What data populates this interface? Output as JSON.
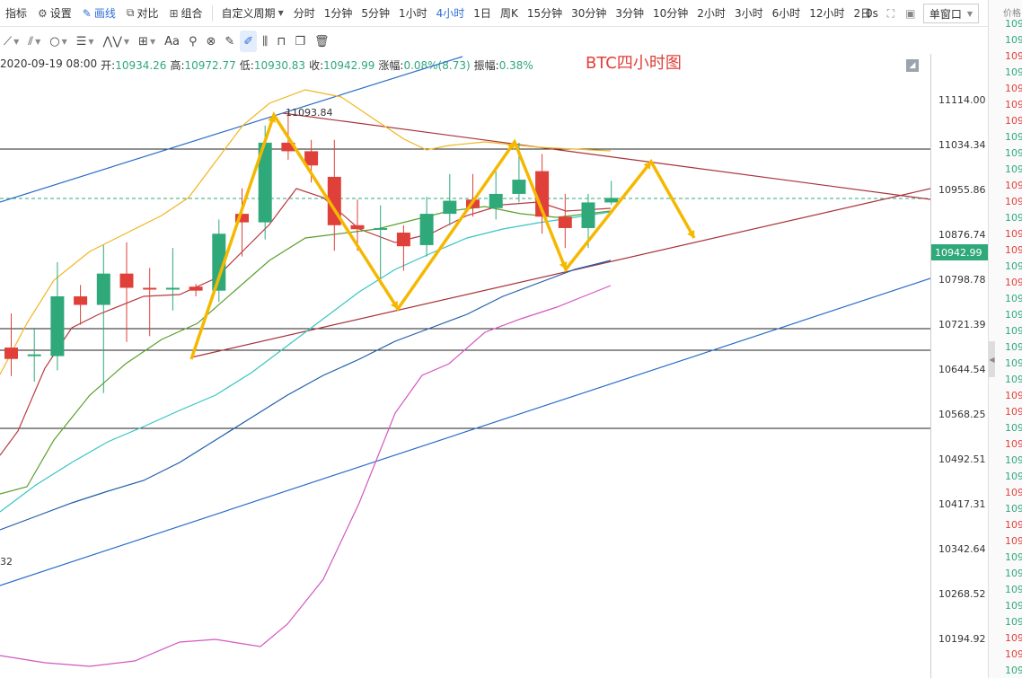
{
  "toolbar": {
    "indicators_label": "指标",
    "settings_label": "设置",
    "draw_label": "画线",
    "compare_label": "对比",
    "combo_label": "组合",
    "custom_period_label": "自定义周期",
    "periods": [
      "分时",
      "1分钟",
      "5分钟",
      "1小时",
      "4小时",
      "1日",
      "周K",
      "15分钟",
      "30分钟",
      "3分钟",
      "10分钟",
      "2小时",
      "3小时",
      "6小时",
      "12小时",
      "2日"
    ],
    "active_period": "4小时",
    "seconds_label": "0s",
    "window_select": "单窗口"
  },
  "drawing_tools": [
    {
      "name": "trendline-tool-icon",
      "glyph": "⟋",
      "caret": true
    },
    {
      "name": "parallel-lines-tool-icon",
      "glyph": "⫽",
      "caret": true
    },
    {
      "name": "ellipse-tool-icon",
      "glyph": "○",
      "caret": true
    },
    {
      "name": "fib-tool-icon",
      "glyph": "☰",
      "caret": true
    },
    {
      "name": "wave-tool-icon",
      "glyph": "⋀⋁",
      "caret": true
    },
    {
      "name": "crosshair-tool-icon",
      "glyph": "⊞",
      "caret": true
    },
    {
      "name": "text-tool-icon",
      "glyph": "Aa",
      "caret": false
    },
    {
      "name": "magnet-tool-icon",
      "glyph": "⚲",
      "caret": false
    },
    {
      "name": "link-tool-icon",
      "glyph": "⊗",
      "caret": false
    },
    {
      "name": "measure-tool-icon",
      "glyph": "✎",
      "caret": false
    },
    {
      "name": "pen-tool-icon",
      "glyph": "✐",
      "caret": false
    },
    {
      "name": "candles-tool-icon",
      "glyph": "⫼",
      "caret": false
    },
    {
      "name": "lock-tool-icon",
      "glyph": "⊓",
      "caret": false
    },
    {
      "name": "copy-tool-icon",
      "glyph": "❐",
      "caret": false
    },
    {
      "name": "trash-tool-icon",
      "glyph": "🗑",
      "caret": false
    }
  ],
  "ohlc": {
    "datetime": "2020-09-19 08:00",
    "open_label": "开:",
    "open": "10934.26",
    "high_label": "高:",
    "high": "10972.77",
    "low_label": "低:",
    "low": "10930.83",
    "close_label": "收:",
    "close": "10942.99",
    "change_label": "涨幅:",
    "change": "0.08%(8.73)",
    "amplitude_label": "振幅:",
    "amplitude": "0.38%"
  },
  "chart_title": "BTC四小时图",
  "chart_data": {
    "type": "candlestick",
    "price_axis_ticks": [
      "11114.00",
      "11034.34",
      "10955.86",
      "10876.74",
      "10798.78",
      "10721.39",
      "10644.54",
      "10568.25",
      "10492.51",
      "10417.31",
      "10342.64",
      "10268.52",
      "10194.92"
    ],
    "current_price": "10942.99",
    "high_annotation": "11093.84",
    "left_edge_label": "32",
    "candles": [
      {
        "o": 10680,
        "h": 10740,
        "l": 10630,
        "c": 10660
      },
      {
        "o": 10665,
        "h": 10715,
        "l": 10620,
        "c": 10668
      },
      {
        "o": 10665,
        "h": 10830,
        "l": 10640,
        "c": 10770
      },
      {
        "o": 10770,
        "h": 10790,
        "l": 10720,
        "c": 10755
      },
      {
        "o": 10755,
        "h": 10860,
        "l": 10600,
        "c": 10810
      },
      {
        "o": 10810,
        "h": 10865,
        "l": 10690,
        "c": 10785
      },
      {
        "o": 10785,
        "h": 10820,
        "l": 10700,
        "c": 10782
      },
      {
        "o": 10782,
        "h": 10855,
        "l": 10745,
        "c": 10785
      },
      {
        "o": 10787,
        "h": 10792,
        "l": 10770,
        "c": 10780
      },
      {
        "o": 10780,
        "h": 10905,
        "l": 10760,
        "c": 10880
      },
      {
        "o": 10915,
        "h": 10960,
        "l": 10840,
        "c": 10900
      },
      {
        "o": 10900,
        "h": 11070,
        "l": 10870,
        "c": 11040
      },
      {
        "o": 11040,
        "h": 11094,
        "l": 11010,
        "c": 11025
      },
      {
        "o": 11025,
        "h": 11045,
        "l": 10970,
        "c": 11000
      },
      {
        "o": 10980,
        "h": 11045,
        "l": 10850,
        "c": 10895
      },
      {
        "o": 10895,
        "h": 10940,
        "l": 10850,
        "c": 10888
      },
      {
        "o": 10890,
        "h": 10930,
        "l": 10790,
        "c": 10890
      },
      {
        "o": 10882,
        "h": 10895,
        "l": 10815,
        "c": 10858
      },
      {
        "o": 10860,
        "h": 10945,
        "l": 10840,
        "c": 10915
      },
      {
        "o": 10915,
        "h": 10985,
        "l": 10895,
        "c": 10938
      },
      {
        "o": 10940,
        "h": 10985,
        "l": 10910,
        "c": 10925
      },
      {
        "o": 10925,
        "h": 10990,
        "l": 10905,
        "c": 10950
      },
      {
        "o": 10950,
        "h": 11040,
        "l": 10935,
        "c": 10975
      },
      {
        "o": 10990,
        "h": 11020,
        "l": 10880,
        "c": 10910
      },
      {
        "o": 10910,
        "h": 10950,
        "l": 10855,
        "c": 10890
      },
      {
        "o": 10890,
        "h": 10950,
        "l": 10855,
        "c": 10935
      },
      {
        "o": 10935,
        "h": 10973,
        "l": 10931,
        "c": 10943
      }
    ]
  },
  "side_panel": {
    "header": "价格",
    "rows": [
      {
        "text": "109",
        "color": "g"
      },
      {
        "text": "109",
        "color": "g"
      },
      {
        "text": "109",
        "color": "r"
      },
      {
        "text": "109",
        "color": "g"
      },
      {
        "text": "109",
        "color": "r"
      },
      {
        "text": "109",
        "color": "r"
      },
      {
        "text": "109",
        "color": "r"
      },
      {
        "text": "109",
        "color": "g"
      },
      {
        "text": "109",
        "color": "g"
      },
      {
        "text": "109",
        "color": "g"
      },
      {
        "text": "109",
        "color": "r"
      },
      {
        "text": "109",
        "color": "r"
      },
      {
        "text": "109",
        "color": "g"
      },
      {
        "text": "109",
        "color": "r"
      },
      {
        "text": "109",
        "color": "r"
      },
      {
        "text": "109",
        "color": "g"
      },
      {
        "text": "109",
        "color": "r"
      },
      {
        "text": "109",
        "color": "g"
      },
      {
        "text": "109",
        "color": "g"
      },
      {
        "text": "109",
        "color": "g"
      },
      {
        "text": "109",
        "color": "g"
      },
      {
        "text": "109",
        "color": "g"
      },
      {
        "text": "109",
        "color": "g"
      },
      {
        "text": "109",
        "color": "r"
      },
      {
        "text": "109",
        "color": "r"
      },
      {
        "text": "109",
        "color": "g"
      },
      {
        "text": "109",
        "color": "r"
      },
      {
        "text": "109",
        "color": "g"
      },
      {
        "text": "109",
        "color": "g"
      },
      {
        "text": "109",
        "color": "r"
      },
      {
        "text": "109",
        "color": "g"
      },
      {
        "text": "109",
        "color": "r"
      },
      {
        "text": "109",
        "color": "r"
      },
      {
        "text": "109",
        "color": "g"
      },
      {
        "text": "109",
        "color": "g"
      },
      {
        "text": "109",
        "color": "g"
      },
      {
        "text": "109",
        "color": "g"
      },
      {
        "text": "109",
        "color": "g"
      },
      {
        "text": "109",
        "color": "r"
      },
      {
        "text": "109",
        "color": "r"
      },
      {
        "text": "109",
        "color": "g"
      }
    ]
  },
  "colors": {
    "up": "#2fa87a",
    "down": "#e0403a",
    "accent": "#2f6fd6",
    "arrow": "#f5b800"
  }
}
